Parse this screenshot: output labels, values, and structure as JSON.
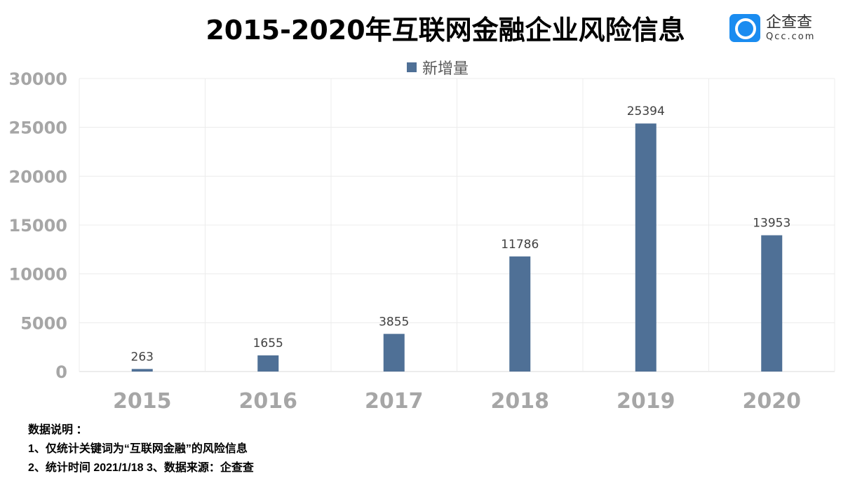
{
  "title": "2015-2020年互联网金融企业风险信息",
  "logo": {
    "name": "企查查",
    "domain": "Qcc.com",
    "color": "#1a8cf0"
  },
  "notes": [
    "数据说明 ：",
    "1、仅统计关键词为“互联网金融”的风险信息",
    "2、统计时间 2021/1/18   3、数据来源：企查查"
  ],
  "chart_data": {
    "type": "bar",
    "title": "2015-2020年互联网金融企业风险信息",
    "categories": [
      "2015",
      "2016",
      "2017",
      "2018",
      "2019",
      "2020"
    ],
    "series": [
      {
        "name": "新增量",
        "values": [
          263,
          1655,
          3855,
          11786,
          25394,
          13953
        ],
        "color": "#4f7096"
      }
    ],
    "ylim": [
      0,
      30000
    ],
    "yticks": [
      0,
      5000,
      10000,
      15000,
      20000,
      25000,
      30000
    ],
    "grid": true,
    "legend": "top"
  }
}
